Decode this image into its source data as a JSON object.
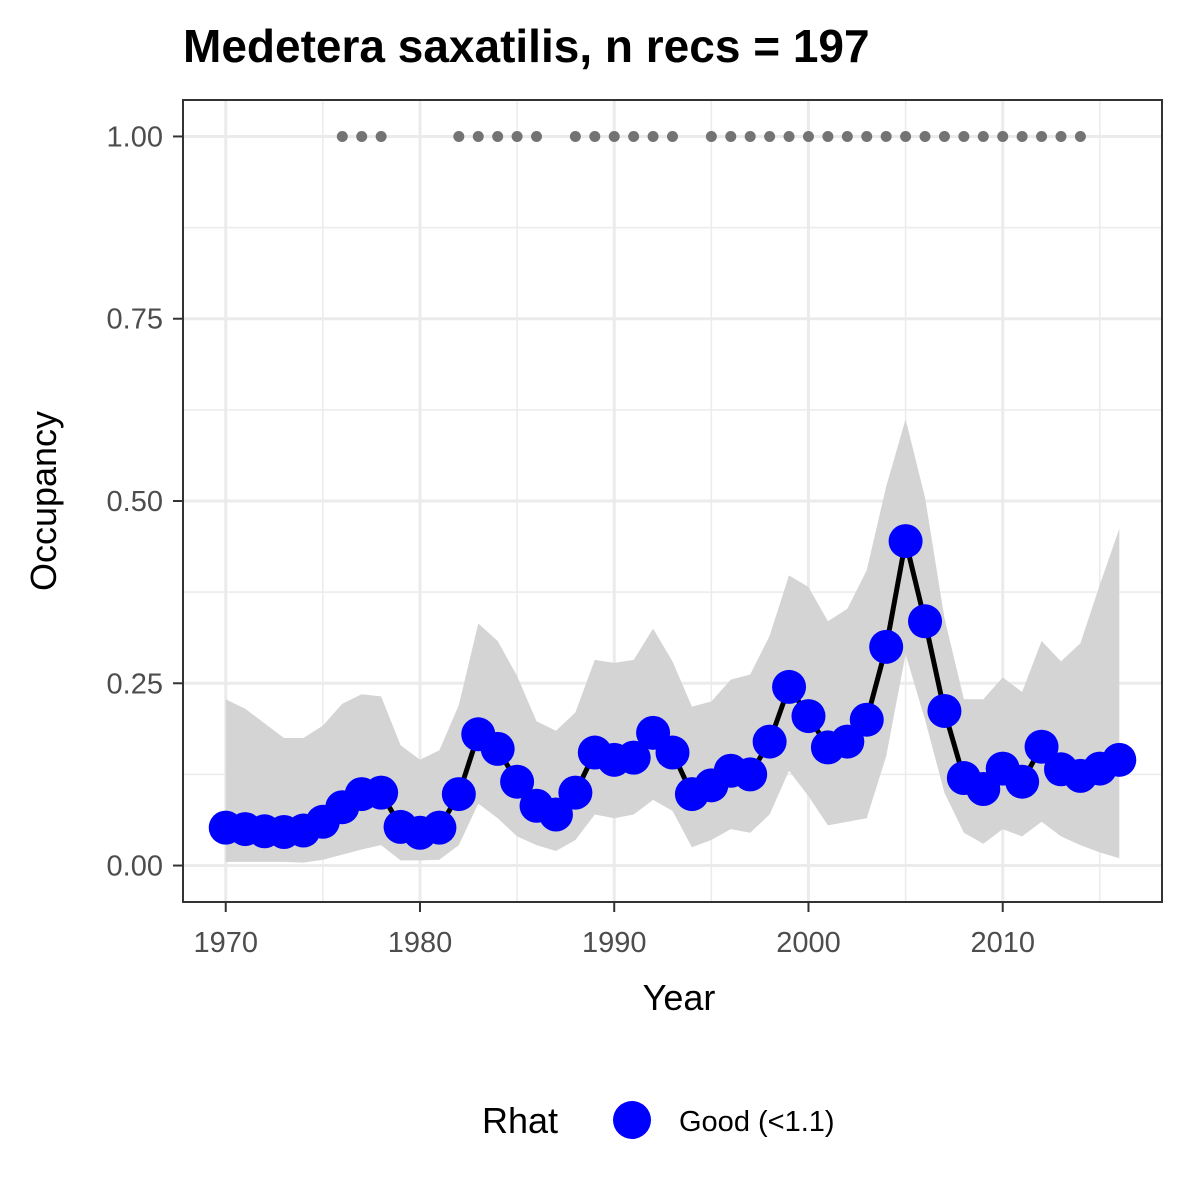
{
  "chart_data": {
    "type": "line",
    "title": "Medetera saxatilis, n recs = 197",
    "xlabel": "Year",
    "ylabel": "Occupancy",
    "xlim": [
      1967.8,
      2018.2
    ],
    "ylim": [
      -0.05,
      1.05
    ],
    "x_ticks": [
      1970,
      1980,
      1990,
      2000,
      2010
    ],
    "y_ticks": [
      0,
      0.25,
      0.5,
      0.75,
      1.0
    ],
    "y_tick_labels": [
      "0.00",
      "0.25",
      "0.50",
      "0.75",
      "1.00"
    ],
    "grid": true,
    "colors": {
      "point": "#0000ff",
      "line": "#000000",
      "ribbon": "#d4d4d4",
      "record_marker": "#737373",
      "grid": "#ebebeb",
      "panel_border": "#333333"
    },
    "x": [
      1970,
      1971,
      1972,
      1973,
      1974,
      1975,
      1976,
      1977,
      1978,
      1979,
      1980,
      1981,
      1982,
      1983,
      1984,
      1985,
      1986,
      1987,
      1988,
      1989,
      1990,
      1991,
      1992,
      1993,
      1994,
      1995,
      1996,
      1997,
      1998,
      1999,
      2000,
      2001,
      2002,
      2003,
      2004,
      2005,
      2006,
      2007,
      2008,
      2009,
      2010,
      2011,
      2012,
      2013,
      2014,
      2015,
      2016
    ],
    "series": [
      {
        "values": [
          0.052,
          0.05,
          0.047,
          0.046,
          0.048,
          0.06,
          0.08,
          0.098,
          0.1,
          0.053,
          0.045,
          0.052,
          0.098,
          0.18,
          0.16,
          0.115,
          0.082,
          0.07,
          0.1,
          0.155,
          0.145,
          0.148,
          0.182,
          0.155,
          0.098,
          0.11,
          0.13,
          0.125,
          0.17,
          0.245,
          0.205,
          0.162,
          0.17,
          0.2,
          0.3,
          0.445,
          0.335,
          0.212,
          0.12,
          0.105,
          0.133,
          0.115,
          0.163,
          0.132,
          0.123,
          0.133,
          0.145
        ],
        "lower": [
          0.005,
          0.005,
          0.005,
          0.005,
          0.004,
          0.008,
          0.015,
          0.022,
          0.028,
          0.007,
          0.007,
          0.008,
          0.028,
          0.085,
          0.065,
          0.04,
          0.028,
          0.02,
          0.035,
          0.07,
          0.065,
          0.07,
          0.09,
          0.075,
          0.025,
          0.035,
          0.05,
          0.045,
          0.07,
          0.13,
          0.095,
          0.055,
          0.06,
          0.065,
          0.15,
          0.29,
          0.2,
          0.1,
          0.045,
          0.03,
          0.05,
          0.04,
          0.06,
          0.04,
          0.028,
          0.018,
          0.01
        ],
        "upper": [
          0.228,
          0.215,
          0.195,
          0.175,
          0.175,
          0.192,
          0.222,
          0.235,
          0.232,
          0.165,
          0.145,
          0.158,
          0.22,
          0.332,
          0.308,
          0.26,
          0.198,
          0.185,
          0.21,
          0.282,
          0.278,
          0.282,
          0.325,
          0.28,
          0.218,
          0.225,
          0.255,
          0.262,
          0.315,
          0.398,
          0.382,
          0.335,
          0.352,
          0.405,
          0.52,
          0.612,
          0.505,
          0.34,
          0.228,
          0.228,
          0.258,
          0.238,
          0.308,
          0.28,
          0.305,
          0.385,
          0.462
        ]
      }
    ],
    "records": {
      "y": 1.0,
      "years": [
        1976,
        1977,
        1978,
        1982,
        1983,
        1984,
        1985,
        1986,
        1988,
        1989,
        1990,
        1991,
        1992,
        1993,
        1995,
        1996,
        1997,
        1998,
        1999,
        2000,
        2001,
        2002,
        2003,
        2004,
        2005,
        2006,
        2007,
        2008,
        2009,
        2010,
        2011,
        2012,
        2013,
        2014
      ]
    },
    "legend": {
      "position": "bottom",
      "title": "Rhat",
      "entries": [
        {
          "label": "Good (<1.1)",
          "color": "#0000ff"
        }
      ]
    }
  }
}
